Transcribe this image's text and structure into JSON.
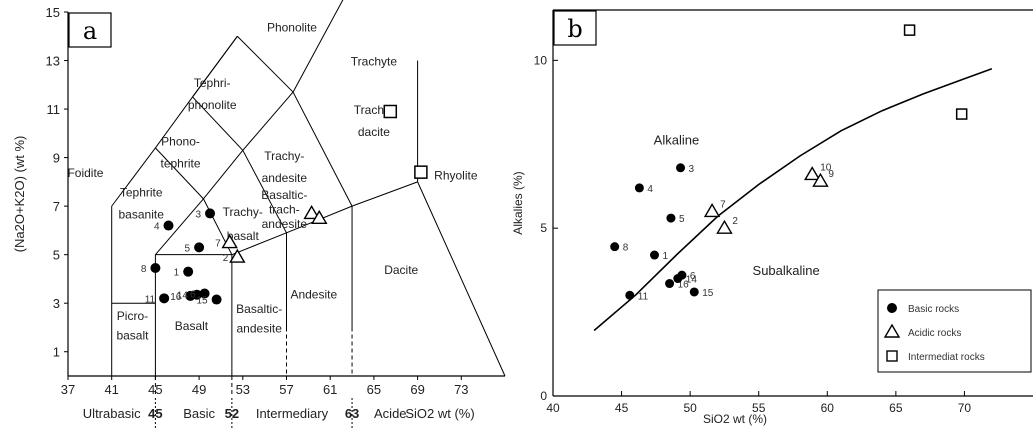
{
  "chart_data": [
    {
      "type": "scatter",
      "panel_label": "a",
      "ylabel": "(Na2O+K2O) (wt %)",
      "xlabel": "SiO2 wt (%)",
      "xlim": [
        37,
        77
      ],
      "ylim": [
        0,
        15
      ],
      "xticks": [
        37,
        41,
        45,
        49,
        53,
        57,
        61,
        65,
        69,
        73
      ],
      "yticks": [
        1,
        3,
        5,
        7,
        9,
        11,
        13,
        15
      ],
      "field_labels": [
        {
          "text": "Phonolite",
          "x": 57.5,
          "y": 14.2
        },
        {
          "text": "Tephri-",
          "x": 50.2,
          "y": 11.9
        },
        {
          "text": "phonolite",
          "x": 50.2,
          "y": 11.0
        },
        {
          "text": "Trachyte",
          "x": 65.0,
          "y": 12.8
        },
        {
          "text": "Trachy-",
          "x": 65.0,
          "y": 10.8
        },
        {
          "text": "dacite",
          "x": 65.0,
          "y": 9.9
        },
        {
          "text": "Phono-",
          "x": 47.3,
          "y": 9.5
        },
        {
          "text": "tephrite",
          "x": 47.3,
          "y": 8.6
        },
        {
          "text": "Trachy-",
          "x": 56.8,
          "y": 8.9
        },
        {
          "text": "andesite",
          "x": 56.8,
          "y": 8.0
        },
        {
          "text": "Basaltic-",
          "x": 56.8,
          "y": 7.3
        },
        {
          "text": "trach-",
          "x": 56.8,
          "y": 6.7
        },
        {
          "text": "andesite",
          "x": 56.8,
          "y": 6.1
        },
        {
          "text": "Foidite",
          "x": 38.6,
          "y": 8.2
        },
        {
          "text": "Tephrite",
          "x": 43.7,
          "y": 7.4
        },
        {
          "text": "basanite",
          "x": 43.7,
          "y": 6.5
        },
        {
          "text": "Trachy-",
          "x": 53.0,
          "y": 6.6
        },
        {
          "text": "basalt",
          "x": 53.0,
          "y": 5.6
        },
        {
          "text": "Rhyolite",
          "x": 72.5,
          "y": 8.1
        },
        {
          "text": "Dacite",
          "x": 67.5,
          "y": 4.2
        },
        {
          "text": "Andesite",
          "x": 59.5,
          "y": 3.2
        },
        {
          "text": "Basaltic-",
          "x": 54.5,
          "y": 2.6
        },
        {
          "text": "andesite",
          "x": 54.5,
          "y": 1.8
        },
        {
          "text": "Basalt",
          "x": 48.3,
          "y": 1.9
        },
        {
          "text": "Picro-",
          "x": 42.9,
          "y": 2.3
        },
        {
          "text": "basalt",
          "x": 42.9,
          "y": 1.5
        }
      ],
      "bottom_classes": [
        "Ultrabasic",
        "Basic",
        "Intermediary",
        "Acide"
      ],
      "bottom_boundaries": [
        "45",
        "52",
        "63"
      ],
      "series": [
        {
          "name": "Basic rocks",
          "marker": "circle",
          "points": [
            {
              "x": 46.2,
              "y": 6.2,
              "label": "4"
            },
            {
              "x": 50.0,
              "y": 6.7,
              "label": "3"
            },
            {
              "x": 49.0,
              "y": 5.3,
              "label": "5"
            },
            {
              "x": 45.0,
              "y": 4.45,
              "label": "8"
            },
            {
              "x": 48.0,
              "y": 4.3,
              "label": "1"
            },
            {
              "x": 45.8,
              "y": 3.2,
              "label": "11"
            },
            {
              "x": 48.2,
              "y": 3.3,
              "label": "16"
            },
            {
              "x": 48.8,
              "y": 3.35,
              "label": "14"
            },
            {
              "x": 49.5,
              "y": 3.4,
              "label": "6"
            },
            {
              "x": 50.6,
              "y": 3.15,
              "label": "15"
            }
          ]
        },
        {
          "name": "Acidic rocks",
          "marker": "triangle",
          "points": [
            {
              "x": 51.8,
              "y": 5.5,
              "label": "7"
            },
            {
              "x": 52.5,
              "y": 4.9,
              "label": "2"
            },
            {
              "x": 59.3,
              "y": 6.7,
              "label": ""
            },
            {
              "x": 60.0,
              "y": 6.5,
              "label": ""
            }
          ]
        },
        {
          "name": "Intermediat rocks",
          "marker": "square",
          "points": [
            {
              "x": 66.5,
              "y": 10.9,
              "label": ""
            },
            {
              "x": 69.3,
              "y": 8.4,
              "label": ""
            }
          ]
        }
      ]
    },
    {
      "type": "scatter",
      "panel_label": "b",
      "ylabel": "Alkalies (%)",
      "xlabel": "SiO2 wt (%)",
      "xlim": [
        40,
        75
      ],
      "ylim": [
        0,
        11.5
      ],
      "xticks": [
        40,
        45,
        50,
        55,
        60,
        65,
        70
      ],
      "yticks": [
        0,
        5,
        10
      ],
      "region_labels": [
        {
          "text": "Alkaline",
          "x": 49.0,
          "y": 7.5
        },
        {
          "text": "Subalkaline",
          "x": 57.0,
          "y": 3.6
        }
      ],
      "divider_curve": [
        [
          43,
          1.95
        ],
        [
          46,
          3.0
        ],
        [
          49,
          4.2
        ],
        [
          52,
          5.35
        ],
        [
          55,
          6.3
        ],
        [
          58,
          7.15
        ],
        [
          61,
          7.9
        ],
        [
          64,
          8.5
        ],
        [
          67,
          9.0
        ],
        [
          70,
          9.45
        ],
        [
          72,
          9.75
        ]
      ],
      "legend": {
        "position": "bottom-right",
        "entries": [
          "Basic rocks",
          "Acidic rocks",
          "Intermediat rocks"
        ]
      },
      "series": [
        {
          "name": "Basic rocks",
          "marker": "circle",
          "points": [
            {
              "x": 49.3,
              "y": 6.8,
              "label": "3"
            },
            {
              "x": 46.3,
              "y": 6.2,
              "label": "4"
            },
            {
              "x": 48.6,
              "y": 5.3,
              "label": "5"
            },
            {
              "x": 44.5,
              "y": 4.45,
              "label": "8"
            },
            {
              "x": 47.4,
              "y": 4.2,
              "label": "1"
            },
            {
              "x": 45.6,
              "y": 3.0,
              "label": "11"
            },
            {
              "x": 48.5,
              "y": 3.35,
              "label": "16"
            },
            {
              "x": 49.1,
              "y": 3.5,
              "label": "14"
            },
            {
              "x": 49.4,
              "y": 3.6,
              "label": "6"
            },
            {
              "x": 50.3,
              "y": 3.1,
              "label": "15"
            }
          ]
        },
        {
          "name": "Acidic rocks",
          "marker": "triangle",
          "points": [
            {
              "x": 51.6,
              "y": 5.5,
              "label": "7"
            },
            {
              "x": 52.5,
              "y": 5.0,
              "label": "2"
            },
            {
              "x": 58.9,
              "y": 6.6,
              "label": "10"
            },
            {
              "x": 59.5,
              "y": 6.4,
              "label": "9"
            }
          ]
        },
        {
          "name": "Intermediat rocks",
          "marker": "square",
          "points": [
            {
              "x": 66.0,
              "y": 10.9,
              "label": ""
            },
            {
              "x": 69.8,
              "y": 8.4,
              "label": ""
            }
          ]
        }
      ]
    }
  ]
}
